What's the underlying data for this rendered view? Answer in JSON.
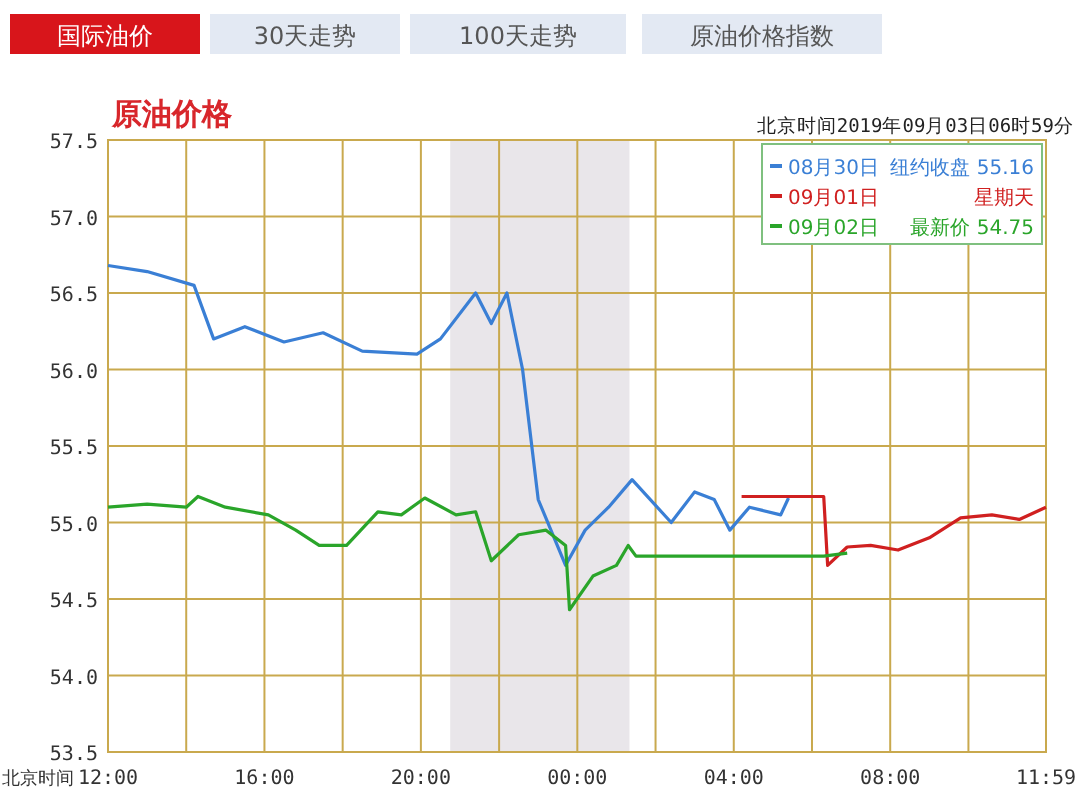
{
  "chart_data": {
    "type": "line",
    "title": "原油价格",
    "subtitle": "北京时间2019年09月03日06时59分",
    "xlabel": "北京时间",
    "annotations": [
      "国际油价",
      "30天走势",
      "100天走势",
      "原油价格指数",
      "纽约收盘 55.16",
      "星期天",
      "最新价 54.75"
    ],
    "xlim": [
      "2019-09-02T12:00",
      "2019-09-03T11:59"
    ],
    "ylim": [
      53.5,
      57.5
    ],
    "xticks": [
      {
        "value": "2019-09-02T12:00",
        "label": "12:00"
      },
      {
        "value": "2019-09-02T14:00",
        "label": null
      },
      {
        "value": "2019-09-02T16:00",
        "label": "16:00"
      },
      {
        "value": "2019-09-02T18:00",
        "label": null
      },
      {
        "value": "2019-09-02T20:00",
        "label": "20:00"
      },
      {
        "value": "2019-09-02T22:00",
        "label": null
      },
      {
        "value": "2019-09-03T00:00",
        "label": "00:00"
      },
      {
        "value": "2019-09-03T02:00",
        "label": null
      },
      {
        "value": "2019-09-03T04:00",
        "label": "04:00"
      },
      {
        "value": "2019-09-03T06:00",
        "label": null
      },
      {
        "value": "2019-09-03T08:00",
        "label": "08:00"
      },
      {
        "value": "2019-09-03T10:00",
        "label": null
      },
      {
        "value": "2019-09-03T11:59",
        "label": "11:59"
      }
    ],
    "yticks": [
      {
        "value": 53.5,
        "label": "53.5"
      },
      {
        "value": 54,
        "label": "54.0"
      },
      {
        "value": 54.5,
        "label": "54.5"
      },
      {
        "value": 55,
        "label": "55.0"
      },
      {
        "value": 55.5,
        "label": "55.5"
      },
      {
        "value": 56,
        "label": "56.0"
      },
      {
        "value": 56.5,
        "label": "56.5"
      },
      {
        "value": 57,
        "label": "57.0"
      },
      {
        "value": 57.5,
        "label": "57.5"
      }
    ],
    "bands": [
      {
        "axis": "x",
        "from": "2019-09-02T20:45",
        "to": "2019-09-03T01:20",
        "color": "#e9e6ea"
      }
    ],
    "grid": true,
    "legend": "top right",
    "marker": "none",
    "line_style": "solid",
    "series": [
      {
        "name": "08月30日",
        "color": "#3a7fd5",
        "x": [
          "2019-09-02T12:00",
          "2019-09-02T13:00",
          "2019-09-02T14:12",
          "2019-09-02T14:42",
          "2019-09-02T15:30",
          "2019-09-02T16:30",
          "2019-09-02T17:30",
          "2019-09-02T18:30",
          "2019-09-02T19:54",
          "2019-09-02T20:30",
          "2019-09-02T21:24",
          "2019-09-02T21:48",
          "2019-09-02T22:12",
          "2019-09-02T22:36",
          "2019-09-02T23:00",
          "2019-09-02T23:42",
          "2019-09-03T00:12",
          "2019-09-03T00:48",
          "2019-09-03T01:24",
          "2019-09-03T02:24",
          "2019-09-03T03:00",
          "2019-09-03T03:30",
          "2019-09-03T03:54",
          "2019-09-03T04:24",
          "2019-09-03T05:12",
          "2019-09-03T05:24"
        ],
        "values": [
          56.68,
          56.64,
          56.55,
          56.2,
          56.28,
          56.18,
          56.24,
          56.12,
          56.1,
          56.2,
          56.5,
          56.3,
          56.5,
          56.0,
          55.15,
          54.72,
          54.95,
          55.1,
          55.28,
          55.0,
          55.2,
          55.15,
          54.95,
          55.1,
          55.05,
          55.16
        ]
      },
      {
        "name": "09月01日",
        "color": "#d02020",
        "x": [
          "2019-09-03T04:12",
          "2019-09-03T06:18",
          "2019-09-03T06:24",
          "2019-09-03T06:54",
          "2019-09-03T07:30",
          "2019-09-03T08:12",
          "2019-09-03T09:00",
          "2019-09-03T09:48",
          "2019-09-03T10:36",
          "2019-09-03T11:18",
          "2019-09-03T11:59"
        ],
        "values": [
          55.17,
          55.17,
          54.72,
          54.84,
          54.85,
          54.82,
          54.9,
          55.03,
          55.05,
          55.02,
          55.1
        ]
      },
      {
        "name": "09月02日",
        "color": "#2aa52a",
        "x": [
          "2019-09-02T12:00",
          "2019-09-02T13:00",
          "2019-09-02T14:00",
          "2019-09-02T14:18",
          "2019-09-02T15:00",
          "2019-09-02T16:06",
          "2019-09-02T16:48",
          "2019-09-02T17:24",
          "2019-09-02T18:06",
          "2019-09-02T18:54",
          "2019-09-02T19:30",
          "2019-09-02T20:06",
          "2019-09-02T20:54",
          "2019-09-02T21:24",
          "2019-09-02T21:48",
          "2019-09-02T22:30",
          "2019-09-02T23:12",
          "2019-09-02T23:42",
          "2019-09-02T23:48",
          "2019-09-03T00:24",
          "2019-09-03T01:00",
          "2019-09-03T01:18",
          "2019-09-03T01:30",
          "2019-09-03T06:18",
          "2019-09-03T06:54"
        ],
        "values": [
          55.1,
          55.12,
          55.1,
          55.17,
          55.1,
          55.05,
          54.95,
          54.85,
          54.85,
          55.07,
          55.05,
          55.16,
          55.05,
          55.07,
          54.75,
          54.92,
          54.95,
          54.85,
          54.43,
          54.65,
          54.72,
          54.85,
          54.78,
          54.78,
          54.8
        ]
      }
    ]
  }
}
